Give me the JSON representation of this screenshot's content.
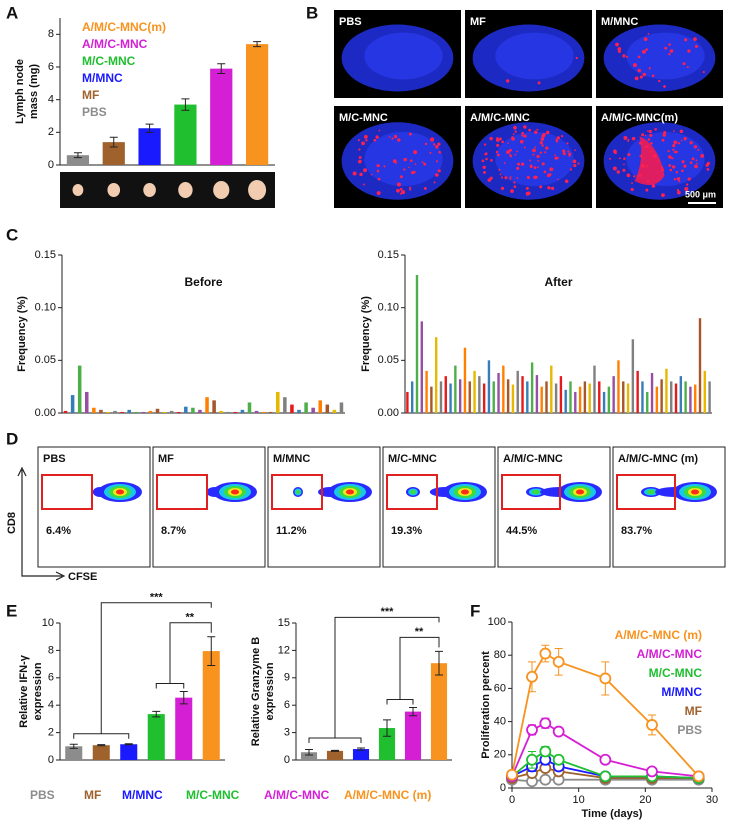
{
  "panel_labels": [
    "A",
    "B",
    "C",
    "D",
    "E",
    "F"
  ],
  "images_b": {
    "labels": [
      "PBS",
      "MF",
      "M/MNC",
      "M/C-MNC",
      "A/M/C-MNC",
      "A/M/C-MNC(m)"
    ],
    "scale": "500 μm"
  },
  "flow_d": {
    "ylabel": "CD8",
    "xlabel": "CFSE",
    "panels": [
      {
        "label": "PBS",
        "percent": "6.4%"
      },
      {
        "label": "MF",
        "percent": "8.7%"
      },
      {
        "label": "M/MNC",
        "percent": "11.2%"
      },
      {
        "label": "M/C-MNC",
        "percent": "19.3%"
      },
      {
        "label": "A/M/C-MNC",
        "percent": "44.5%"
      },
      {
        "label": "A/M/C-MNC (m)",
        "percent": "83.7%"
      }
    ]
  },
  "chart_data": [
    {
      "type": "bar",
      "ylabel": [
        "Lymph node",
        "mass (mg)"
      ],
      "categories": [
        "PBS",
        "MF",
        "M/MNC",
        "M/C-MNC",
        "A/M/C-MNC",
        "A/M/C-MNC(m)"
      ],
      "colors": [
        "#8c8c8c",
        "#a0622d",
        "#1a1aff",
        "#1fbf2f",
        "#d41fd4",
        "#f7931e"
      ],
      "values": [
        0.6,
        1.4,
        2.25,
        3.7,
        5.9,
        7.4
      ],
      "errors": [
        0.15,
        0.3,
        0.25,
        0.35,
        0.3,
        0.15
      ],
      "ylim": [
        0,
        9
      ],
      "yticks": [
        0,
        2,
        4,
        6,
        8
      ],
      "legend": "top-left"
    },
    {
      "type": "bar",
      "title": "Before",
      "ylabel": "Frequency (%)",
      "colors": [
        "#e41a1c",
        "#377eb8",
        "#4daf4a",
        "#984ea3",
        "#ff7f00",
        "#a65628",
        "#e6b800",
        "#808080"
      ],
      "values": [
        0.002,
        0.017,
        0.045,
        0.02,
        0.005,
        0.003,
        0.001,
        0.002,
        0.001,
        0.003,
        0.001,
        0.001,
        0.002,
        0.004,
        0.001,
        0.002,
        0.001,
        0.006,
        0.005,
        0.003,
        0.015,
        0.012,
        0.002,
        0.001,
        0.001,
        0.003,
        0.01,
        0.002,
        0.001,
        0.001,
        0.02,
        0.015,
        0.008,
        0.003,
        0.01,
        0.005,
        0.012,
        0.008,
        0.003,
        0.01
      ],
      "ylim": [
        0,
        0.15
      ],
      "yticks": [
        {
          "value": 0,
          "label": "0.00"
        },
        0.05,
        {
          "value": 0.1,
          "label": "0.10"
        },
        0.15
      ]
    },
    {
      "type": "bar",
      "title": "After",
      "ylabel": "Frequency (%)",
      "colors": [
        "#e41a1c",
        "#377eb8",
        "#4daf4a",
        "#984ea3",
        "#ff7f00",
        "#a65628",
        "#e6b800",
        "#808080"
      ],
      "values": [
        0.02,
        0.03,
        0.131,
        0.087,
        0.04,
        0.025,
        0.072,
        0.03,
        0.035,
        0.028,
        0.045,
        0.032,
        0.062,
        0.03,
        0.04,
        0.035,
        0.028,
        0.05,
        0.03,
        0.038,
        0.045,
        0.032,
        0.027,
        0.04,
        0.035,
        0.03,
        0.048,
        0.036,
        0.025,
        0.03,
        0.045,
        0.028,
        0.035,
        0.022,
        0.03,
        0.02,
        0.025,
        0.03,
        0.028,
        0.045,
        0.03,
        0.02,
        0.025,
        0.035,
        0.05,
        0.03,
        0.028,
        0.07,
        0.04,
        0.03,
        0.02,
        0.038,
        0.025,
        0.032,
        0.042,
        0.03,
        0.028,
        0.035,
        0.03,
        0.025,
        0.027,
        0.09,
        0.04,
        0.03
      ],
      "ylim": [
        0,
        0.15
      ],
      "yticks": [
        {
          "value": 0,
          "label": "0.00"
        },
        0.05,
        {
          "value": 0.1,
          "label": "0.10"
        },
        0.15
      ]
    },
    {
      "type": "bar",
      "ylabel": [
        "Relative IFN-γ",
        "expression"
      ],
      "categories": [
        "PBS",
        "MF",
        "M/MNC",
        "M/C-MNC",
        "A/M/C-MNC",
        "A/M/C-MNC (m)"
      ],
      "colors": [
        "#8c8c8c",
        "#a0622d",
        "#1a1aff",
        "#1fbf2f",
        "#d41fd4",
        "#f7931e"
      ],
      "values": [
        1.0,
        1.08,
        1.15,
        3.35,
        4.55,
        7.95
      ],
      "errors": [
        0.15,
        0.04,
        0.04,
        0.2,
        0.45,
        1.05
      ],
      "significance": [
        "***",
        "**"
      ],
      "ylim": [
        0,
        10
      ],
      "yticks": [
        0,
        2,
        4,
        6,
        8,
        10
      ],
      "legend": "bottom"
    },
    {
      "type": "bar",
      "ylabel": [
        "Relative Granzyme B",
        "expression"
      ],
      "colors": [
        "#8c8c8c",
        "#a0622d",
        "#1a1aff",
        "#1fbf2f",
        "#d41fd4",
        "#f7931e"
      ],
      "values": [
        0.85,
        1.0,
        1.2,
        3.5,
        5.3,
        10.6
      ],
      "errors": [
        0.3,
        0.05,
        0.12,
        0.9,
        0.45,
        1.3
      ],
      "significance": [
        "***",
        "**"
      ],
      "ylim": [
        0,
        15
      ],
      "yticks": [
        0,
        3,
        6,
        9,
        12,
        15
      ]
    },
    {
      "type": "line",
      "xlabel": "Time (days)",
      "ylabel": "Proliferation percent",
      "x": [
        0,
        3,
        5,
        7,
        14,
        21,
        28
      ],
      "xlim": [
        0,
        30
      ],
      "xticks": [
        0,
        10,
        20,
        30
      ],
      "ylim": [
        0,
        100
      ],
      "yticks": [
        0,
        20,
        40,
        60,
        80,
        100
      ],
      "legend": "top-right",
      "series": [
        {
          "name": "A/M/C-MNC (m)",
          "color": "#f7931e",
          "values": [
            8,
            67,
            81,
            76,
            66,
            38,
            7
          ],
          "errors": [
            2,
            9,
            5,
            8,
            10,
            6,
            1
          ]
        },
        {
          "name": "A/M/C-MNC",
          "color": "#d41fd4",
          "values": [
            7,
            35,
            39,
            34,
            17,
            10,
            7
          ],
          "errors": [
            1,
            3,
            3,
            2,
            2,
            1,
            1
          ]
        },
        {
          "name": "M/C-MNC",
          "color": "#1fbf2f",
          "values": [
            7,
            17,
            22,
            17,
            7,
            7,
            6
          ],
          "errors": [
            1,
            5,
            3,
            2,
            1,
            1,
            1
          ]
        },
        {
          "name": "M/MNC",
          "color": "#1a1aff",
          "values": [
            7,
            13,
            17,
            13,
            7,
            7,
            6
          ],
          "errors": [
            1,
            3,
            3,
            2,
            1,
            1,
            1
          ]
        },
        {
          "name": "MF",
          "color": "#a0622d",
          "values": [
            6,
            9,
            12,
            10,
            6,
            6,
            6
          ],
          "errors": [
            1,
            2,
            2,
            1,
            1,
            1,
            1
          ]
        },
        {
          "name": "PBS",
          "color": "#8c8c8c",
          "values": [
            5,
            4,
            5,
            5,
            5,
            5,
            5
          ],
          "errors": [
            1,
            1,
            1,
            1,
            1,
            1,
            1
          ]
        }
      ]
    }
  ]
}
